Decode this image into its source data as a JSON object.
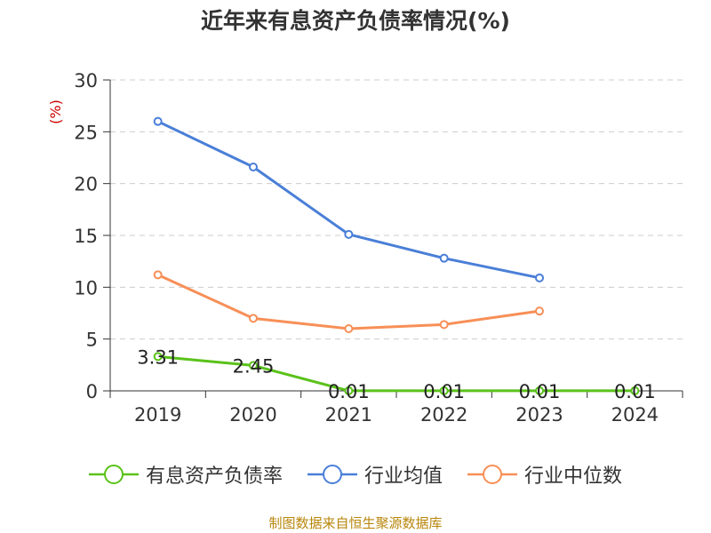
{
  "chart_data": {
    "type": "line",
    "title": "近年来有息资产负债率情况(%)",
    "ylabel": "(%)",
    "xlabel": "",
    "categories": [
      "2019",
      "2020",
      "2021",
      "2022",
      "2023",
      "2024"
    ],
    "ylim": [
      0,
      30
    ],
    "yticks": [
      "0",
      "5",
      "10",
      "15",
      "20",
      "25",
      "30"
    ],
    "grid": true,
    "legend_position": "bottom",
    "series": [
      {
        "name": "有息资产负债率",
        "color": "#5ac21a",
        "values": [
          3.31,
          2.45,
          0.01,
          0.01,
          0.01,
          0.01
        ],
        "labels": [
          "3.31",
          "2.45",
          "0.01",
          "0.01",
          "0.01",
          "0.01"
        ]
      },
      {
        "name": "行业均值",
        "color": "#4a7fd8",
        "values": [
          26.0,
          21.6,
          15.1,
          12.8,
          10.9,
          null
        ]
      },
      {
        "name": "行业中位数",
        "color": "#f78f57",
        "values": [
          11.2,
          7.0,
          6.0,
          6.4,
          7.7,
          null
        ]
      }
    ]
  },
  "source": "制图数据来自恒生聚源数据库",
  "colors": {
    "axis": "#333333",
    "grid": "#cccccc",
    "ylabel": "#cc0000",
    "source": "#b8860b"
  }
}
